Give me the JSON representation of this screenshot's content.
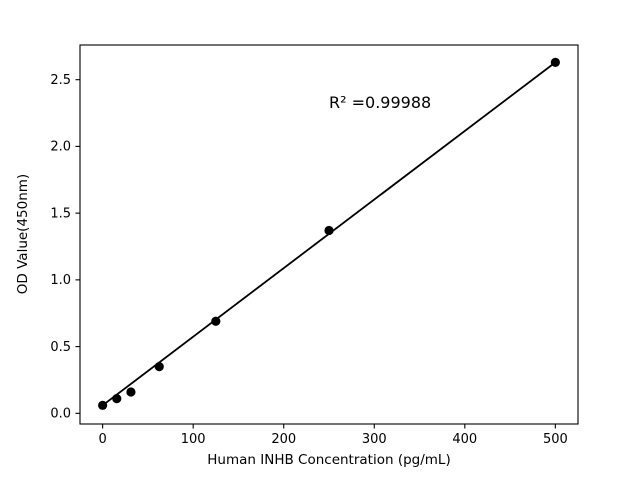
{
  "chart_data": {
    "type": "scatter",
    "title": "",
    "xlabel": "Human INHB Concentration (pg/mL)",
    "ylabel": "OD Value(450nm)",
    "annotation": "R² =0.99988",
    "x": [
      0,
      15.6,
      31.25,
      62.5,
      125,
      250,
      500
    ],
    "y": [
      0.06,
      0.11,
      0.16,
      0.35,
      0.69,
      1.37,
      2.63
    ],
    "fit_line": {
      "x": [
        0,
        500
      ],
      "y": [
        0.06,
        2.63
      ]
    },
    "xlim": [
      -25,
      525
    ],
    "ylim": [
      -0.08,
      2.76
    ],
    "xticks": [
      0,
      100,
      200,
      300,
      400,
      500
    ],
    "yticks": [
      0.0,
      0.5,
      1.0,
      1.5,
      2.0,
      2.5
    ],
    "grid": false,
    "legend": null,
    "marker_color": "#000000",
    "line_color": "#000000",
    "background_color": "#ffffff"
  }
}
